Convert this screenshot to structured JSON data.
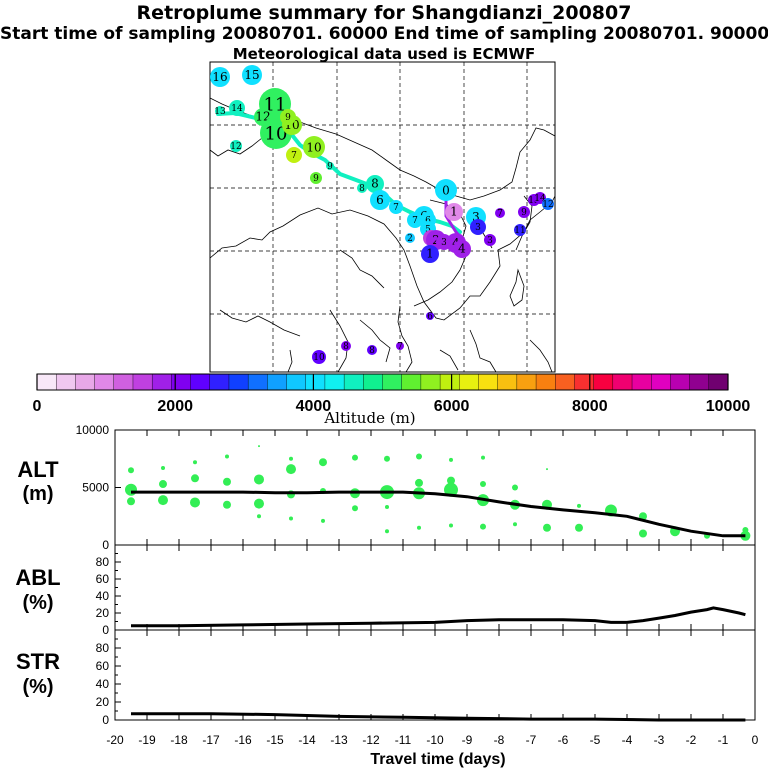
{
  "header": {
    "title": "Retroplume summary for Shangdianzi_200807",
    "sampling": "Start time of sampling 20080701. 60000     End time of sampling 20080701. 90000",
    "met": "Meteorological data used is ECMWF"
  },
  "colorbar": {
    "ticks": [
      "0",
      "2000",
      "4000",
      "6000",
      "8000",
      "10000"
    ],
    "label": "Altitude (m)",
    "colors": [
      "#f8e8f8",
      "#f0c8f0",
      "#e8a8e8",
      "#e088e8",
      "#d060e0",
      "#c040e0",
      "#a020e8",
      "#8000f0",
      "#6000ff",
      "#3020ff",
      "#1040ff",
      "#1070ff",
      "#10a0ff",
      "#10c8ff",
      "#10e0ff",
      "#10f0f0",
      "#10f0c0",
      "#10f090",
      "#30f060",
      "#60f030",
      "#90f020",
      "#c0f010",
      "#e8f010",
      "#f8e010",
      "#f8c010",
      "#f8a010",
      "#f88010",
      "#f86020",
      "#f83030",
      "#f80040",
      "#f00070",
      "#e800a0",
      "#e000c0",
      "#b800b0",
      "#900090",
      "#700070"
    ]
  },
  "map": {
    "markers": [
      {
        "l": "16",
        "c": "#10e0ff"
      },
      {
        "l": "15",
        "c": "#10e0ff"
      },
      {
        "l": "14",
        "c": "#10f0c0"
      },
      {
        "l": "13",
        "c": "#10f0c0"
      },
      {
        "l": "11",
        "c": "#30f060"
      },
      {
        "l": "12",
        "c": "#30f060"
      },
      {
        "l": "10",
        "c": "#30f060"
      },
      {
        "l": "10",
        "c": "#90f020"
      },
      {
        "l": "9",
        "c": "#90f020"
      },
      {
        "l": "10",
        "c": "#90f020"
      },
      {
        "l": "12",
        "c": "#10f0c0"
      },
      {
        "l": "7",
        "c": "#c0f010"
      },
      {
        "l": "9",
        "c": "#60f030"
      },
      {
        "l": "9",
        "c": "#10f0c0"
      },
      {
        "l": "8",
        "c": "#10f0c0"
      },
      {
        "l": "8",
        "c": "#10f0c0"
      },
      {
        "l": "6",
        "c": "#10e0ff"
      },
      {
        "l": "7",
        "c": "#10e0ff"
      },
      {
        "l": "6",
        "c": "#10e0ff"
      },
      {
        "l": "0",
        "c": "#10e0ff"
      },
      {
        "l": "1",
        "c": "#e088e8"
      },
      {
        "l": "7",
        "c": "#10e0ff"
      },
      {
        "l": "6",
        "c": "#10e0ff"
      },
      {
        "l": "5",
        "c": "#10e0ff"
      },
      {
        "l": "3",
        "c": "#10e0ff"
      },
      {
        "l": "3",
        "c": "#3020ff"
      },
      {
        "l": "2",
        "c": "#10c8ff"
      },
      {
        "l": "1",
        "c": "#c040e0"
      },
      {
        "l": "2",
        "c": "#a020e8"
      },
      {
        "l": "3",
        "c": "#a020e8"
      },
      {
        "l": "4",
        "c": "#a020e8"
      },
      {
        "l": "4",
        "c": "#a020e8"
      },
      {
        "l": "1",
        "c": "#3020ff"
      },
      {
        "l": "3",
        "c": "#8000f0"
      },
      {
        "l": "7",
        "c": "#8000f0"
      },
      {
        "l": "9",
        "c": "#8000f0"
      },
      {
        "l": "13",
        "c": "#8000f0"
      },
      {
        "l": "14",
        "c": "#8000f0"
      },
      {
        "l": "11",
        "c": "#3020ff"
      },
      {
        "l": "12",
        "c": "#1070ff"
      },
      {
        "l": "6",
        "c": "#6000ff"
      },
      {
        "l": "8",
        "c": "#6000ff"
      },
      {
        "l": "10",
        "c": "#6000ff"
      },
      {
        "l": "8",
        "c": "#8000f0"
      },
      {
        "l": "7",
        "c": "#8000f0"
      }
    ]
  },
  "chart_data": [
    {
      "type": "scatter",
      "name": "ALT",
      "ylabel": "ALT\n(m)",
      "ylim": [
        0,
        10000
      ],
      "yticks": [
        "10000",
        "5000",
        "0"
      ],
      "xlim": [
        -20,
        0
      ],
      "series": [
        {
          "name": "mean altitude",
          "type": "line",
          "x": [
            -19.5,
            -19,
            -18,
            -17,
            -16,
            -15,
            -14,
            -13,
            -12,
            -11,
            -10,
            -9,
            -8,
            -7,
            -6,
            -5,
            -4,
            -3,
            -2,
            -1,
            -0.3
          ],
          "y": [
            4600,
            4600,
            4600,
            4600,
            4600,
            4550,
            4550,
            4600,
            4600,
            4600,
            4450,
            4200,
            3750,
            3350,
            3050,
            2800,
            2500,
            1800,
            1200,
            800,
            800
          ]
        },
        {
          "name": "cluster altitudes",
          "type": "scatter",
          "points": [
            [
              -19.5,
              6500,
              3
            ],
            [
              -19.5,
              4800,
              6
            ],
            [
              -19.5,
              3800,
              4
            ],
            [
              -18.5,
              6700,
              2
            ],
            [
              -18.5,
              5300,
              4
            ],
            [
              -18.5,
              3900,
              5
            ],
            [
              -17.5,
              7200,
              2
            ],
            [
              -17.5,
              5800,
              4
            ],
            [
              -17.5,
              3700,
              5
            ],
            [
              -16.5,
              7700,
              2
            ],
            [
              -16.5,
              5500,
              4
            ],
            [
              -16.5,
              3500,
              4
            ],
            [
              -15.5,
              8600,
              1
            ],
            [
              -15.5,
              5700,
              5
            ],
            [
              -15.5,
              3600,
              5
            ],
            [
              -15.5,
              2500,
              2
            ],
            [
              -14.5,
              7500,
              2
            ],
            [
              -14.5,
              6600,
              5
            ],
            [
              -14.5,
              4400,
              4
            ],
            [
              -14.5,
              2300,
              2
            ],
            [
              -13.5,
              7200,
              4
            ],
            [
              -13.5,
              4700,
              3
            ],
            [
              -13.5,
              2100,
              2
            ],
            [
              -12.5,
              7600,
              3
            ],
            [
              -12.5,
              4500,
              5
            ],
            [
              -12.5,
              3200,
              3
            ],
            [
              -11.5,
              7500,
              3
            ],
            [
              -11.5,
              4600,
              7
            ],
            [
              -11.5,
              3300,
              2
            ],
            [
              -11.5,
              1200,
              2
            ],
            [
              -10.5,
              7700,
              3
            ],
            [
              -10.5,
              5400,
              4
            ],
            [
              -10.5,
              4500,
              6
            ],
            [
              -10.5,
              1500,
              2
            ],
            [
              -9.5,
              7400,
              2
            ],
            [
              -9.5,
              5600,
              4
            ],
            [
              -9.5,
              4800,
              7
            ],
            [
              -9.5,
              1700,
              2
            ],
            [
              -8.5,
              7600,
              2
            ],
            [
              -8.5,
              5300,
              3
            ],
            [
              -8.5,
              3900,
              6
            ],
            [
              -8.5,
              1600,
              3
            ],
            [
              -7.5,
              5000,
              3
            ],
            [
              -7.5,
              3500,
              5
            ],
            [
              -7.5,
              1800,
              2
            ],
            [
              -6.5,
              6600,
              1
            ],
            [
              -6.5,
              3500,
              5
            ],
            [
              -6.5,
              1500,
              4
            ],
            [
              -5.5,
              3400,
              2
            ],
            [
              -5.5,
              1500,
              4
            ],
            [
              -4.5,
              3000,
              6
            ],
            [
              -3.5,
              2500,
              4
            ],
            [
              -3.5,
              1000,
              4
            ],
            [
              -2.5,
              1200,
              5
            ],
            [
              -1.5,
              800,
              3
            ],
            [
              -0.3,
              1300,
              3
            ],
            [
              -0.3,
              800,
              5
            ]
          ]
        }
      ]
    },
    {
      "type": "line",
      "name": "ABL",
      "ylabel": "ABL\n(%)",
      "ylim": [
        0,
        100
      ],
      "yticks": [
        "80",
        "60",
        "40",
        "20",
        "0"
      ],
      "x": [
        -19.5,
        -18,
        -16,
        -14,
        -12,
        -10,
        -9,
        -8,
        -7,
        -6,
        -5,
        -4.5,
        -4,
        -3.5,
        -3,
        -2.5,
        -2,
        -1.5,
        -1.3,
        -1,
        -0.5,
        -0.3
      ],
      "y": [
        5,
        5,
        6,
        7,
        8,
        9,
        11,
        12,
        12,
        12,
        11,
        9,
        9,
        11,
        14,
        17,
        21,
        24,
        26,
        24,
        20,
        18
      ]
    },
    {
      "type": "line",
      "name": "STR",
      "ylabel": "STR\n(%)",
      "ylim": [
        0,
        100
      ],
      "yticks": [
        "80",
        "60",
        "40",
        "20",
        "0"
      ],
      "x": [
        -19.5,
        -17,
        -15,
        -13,
        -11,
        -9,
        -7,
        -5,
        -3,
        -1,
        -0.3
      ],
      "y": [
        7,
        7,
        6,
        4,
        3,
        2,
        1,
        1,
        0,
        0,
        0
      ]
    }
  ],
  "xaxis": {
    "ticks": [
      "-20",
      "-19",
      "-18",
      "-17",
      "-16",
      "-15",
      "-14",
      "-13",
      "-12",
      "-11",
      "-10",
      "-9",
      "-8",
      "-7",
      "-6",
      "-5",
      "-4",
      "-3",
      "-2",
      "-1",
      "0"
    ],
    "label": "Travel time (days)"
  }
}
